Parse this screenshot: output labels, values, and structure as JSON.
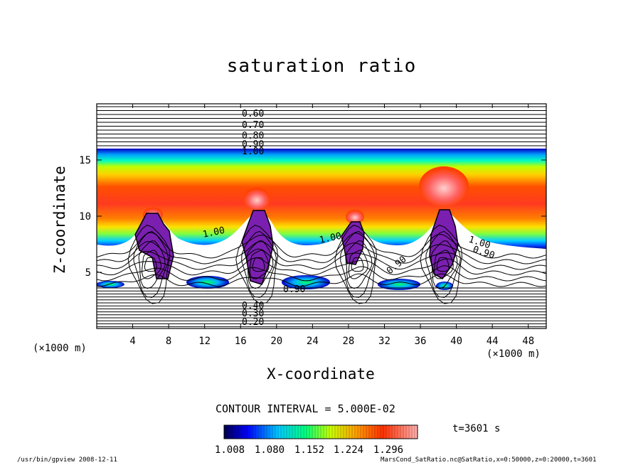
{
  "chart_data": {
    "type": "heatmap",
    "title": "saturation ratio",
    "xlabel": "X-coordinate",
    "ylabel": "Z-coordinate",
    "x_unit": "(×1000 m)",
    "xlim": [
      0,
      50
    ],
    "ylim": [
      0,
      20
    ],
    "xticks": [
      "4",
      "8",
      "12",
      "16",
      "20",
      "24",
      "28",
      "32",
      "36",
      "40",
      "44",
      "48"
    ],
    "yticks": [
      "5",
      "10",
      "15"
    ],
    "contour_labels_top": [
      "0.60",
      "0.70",
      "0.80",
      "0.90",
      "1.00"
    ],
    "contour_labels_bottom": [
      "0.40",
      "0.30",
      "0.20"
    ],
    "contour_labels_interior": [
      "1.00",
      "1.00",
      "1.00",
      "0.90",
      "0.90",
      "0.90"
    ],
    "contour_interval": "CONTOUR INTERVAL = 5.000E-02",
    "colorbar_ticks": [
      "1.008",
      "1.080",
      "1.152",
      "1.224",
      "1.296"
    ],
    "time": "t=3601 s",
    "cloud_towers_x": [
      6,
      18,
      29,
      38.5
    ],
    "colormap": [
      "#000080",
      "#0000ff",
      "#00c8ff",
      "#00ff80",
      "#c8ff00",
      "#ffff00",
      "#ffa000",
      "#ff3000",
      "#ff6060",
      "#ffb0b0"
    ]
  },
  "footer": {
    "left": "/usr/bin/gpview   2008-12-11",
    "right": "MarsCond_SatRatio.nc@SatRatio,x=0:50000,z=0:20000,t=3601"
  }
}
